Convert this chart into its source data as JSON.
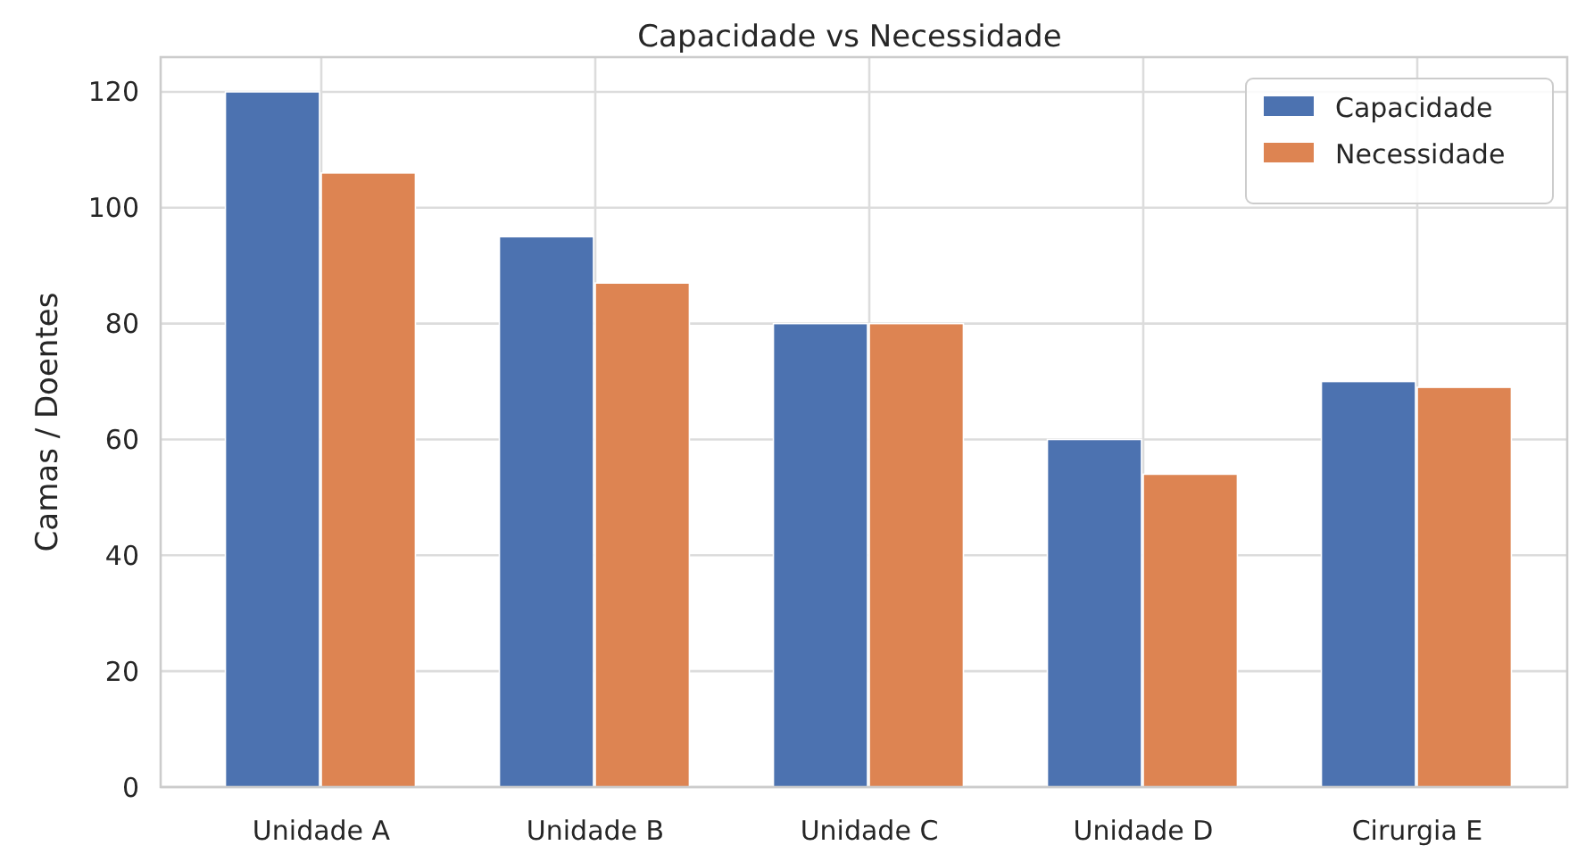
{
  "chart_data": {
    "type": "bar",
    "title": "Capacidade vs Necessidade",
    "ylabel": "Camas / Doentes",
    "categories": [
      "Unidade A",
      "Unidade B",
      "Unidade C",
      "Unidade D",
      "Cirurgia E"
    ],
    "series": [
      {
        "name": "Capacidade",
        "color": "#4c72b0",
        "values": [
          120,
          95,
          80,
          60,
          70
        ]
      },
      {
        "name": "Necessidade",
        "color": "#dd8452",
        "values": [
          106,
          87,
          80,
          54,
          69
        ]
      }
    ],
    "ylim": [
      0,
      126
    ],
    "yticks": [
      0,
      20,
      40,
      60,
      80,
      100,
      120
    ],
    "grid": true,
    "legend": "top right"
  }
}
